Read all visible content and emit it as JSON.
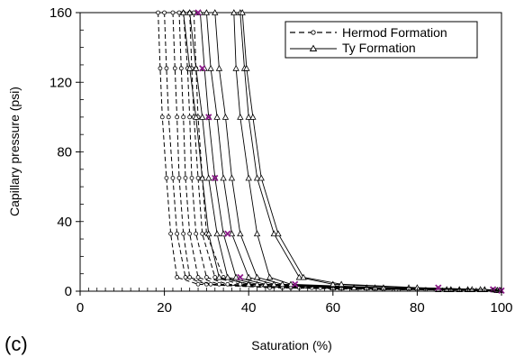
{
  "panel_label": "(c)",
  "chart_data": {
    "type": "line",
    "xlabel": "Saturation (%)",
    "ylabel": "Capillary pressure (psi)",
    "xlim": [
      0,
      100
    ],
    "ylim": [
      0,
      160
    ],
    "xticks": [
      0,
      20,
      40,
      60,
      80,
      100
    ],
    "yticks": [
      0,
      40,
      80,
      120,
      160
    ],
    "legend_position": "top-right",
    "legend": [
      {
        "name": "Hermod Formation",
        "style": "dashed",
        "marker": "circle"
      },
      {
        "name": "Ty Formation",
        "style": "solid",
        "marker": "triangle"
      }
    ],
    "series": [
      {
        "name": "Hermod Formation",
        "points": [
          [
            18.5,
            160
          ],
          [
            19,
            128
          ],
          [
            19.5,
            100
          ],
          [
            20.5,
            65
          ],
          [
            21.5,
            33
          ],
          [
            23,
            8
          ],
          [
            28,
            4
          ],
          [
            45,
            2
          ],
          [
            70,
            1
          ],
          [
            98,
            0.5
          ]
        ]
      },
      {
        "name": "Hermod Formation",
        "points": [
          [
            20,
            160
          ],
          [
            20.5,
            128
          ],
          [
            21,
            100
          ],
          [
            22,
            65
          ],
          [
            23,
            33
          ],
          [
            25,
            8
          ],
          [
            30,
            4
          ],
          [
            48,
            2
          ],
          [
            72,
            1
          ],
          [
            98,
            0.5
          ]
        ]
      },
      {
        "name": "Hermod Formation",
        "points": [
          [
            22,
            160
          ],
          [
            22.5,
            128
          ],
          [
            23,
            100
          ],
          [
            23.5,
            65
          ],
          [
            24.5,
            33
          ],
          [
            26,
            8
          ],
          [
            31,
            4
          ],
          [
            50,
            2
          ],
          [
            75,
            1
          ],
          [
            99,
            0.5
          ]
        ]
      },
      {
        "name": "Hermod Formation",
        "points": [
          [
            23.5,
            160
          ],
          [
            24,
            128
          ],
          [
            24.5,
            100
          ],
          [
            25,
            65
          ],
          [
            26,
            33
          ],
          [
            28,
            8
          ],
          [
            33,
            4
          ],
          [
            52,
            2
          ],
          [
            78,
            1
          ],
          [
            99,
            0.5
          ]
        ]
      },
      {
        "name": "Hermod Formation",
        "points": [
          [
            24.5,
            160
          ],
          [
            25.5,
            128
          ],
          [
            26,
            100
          ],
          [
            26.5,
            65
          ],
          [
            27.5,
            33
          ],
          [
            30,
            8
          ],
          [
            35,
            4
          ],
          [
            55,
            2
          ],
          [
            80,
            1
          ],
          [
            99,
            0.5
          ]
        ]
      },
      {
        "name": "Hermod Formation",
        "points": [
          [
            26,
            160
          ],
          [
            26.5,
            128
          ],
          [
            27,
            100
          ],
          [
            28,
            65
          ],
          [
            29,
            33
          ],
          [
            32,
            8
          ],
          [
            38,
            4
          ],
          [
            57,
            2
          ],
          [
            82,
            1
          ],
          [
            99,
            0.5
          ]
        ]
      },
      {
        "name": "Hermod Formation",
        "points": [
          [
            27,
            160
          ],
          [
            27.5,
            128
          ],
          [
            28,
            100
          ],
          [
            29,
            65
          ],
          [
            30,
            33
          ],
          [
            34,
            8
          ],
          [
            40,
            4
          ],
          [
            60,
            2
          ],
          [
            85,
            1
          ],
          [
            99,
            0.5
          ]
        ]
      },
      {
        "name": "Ty Formation",
        "points": [
          [
            24.5,
            160
          ],
          [
            26,
            128
          ],
          [
            27.5,
            100
          ],
          [
            29,
            65
          ],
          [
            30.5,
            33
          ],
          [
            33,
            8
          ],
          [
            40,
            4
          ],
          [
            60,
            2
          ],
          [
            85,
            1
          ],
          [
            99,
            0.5
          ]
        ]
      },
      {
        "name": "Ty Formation",
        "points": [
          [
            26,
            160
          ],
          [
            27.5,
            128
          ],
          [
            29,
            100
          ],
          [
            30.5,
            65
          ],
          [
            32.5,
            33
          ],
          [
            35,
            8
          ],
          [
            42,
            4
          ],
          [
            62,
            2
          ],
          [
            87,
            1
          ],
          [
            99,
            0.5
          ]
        ]
      },
      {
        "name": "Ty Formation",
        "points": [
          [
            28.5,
            160
          ],
          [
            29.5,
            128
          ],
          [
            30.5,
            100
          ],
          [
            32,
            65
          ],
          [
            34,
            33
          ],
          [
            37,
            8
          ],
          [
            44,
            4
          ],
          [
            65,
            2
          ],
          [
            88,
            1
          ],
          [
            99,
            0.5
          ]
        ]
      },
      {
        "name": "Ty Formation",
        "points": [
          [
            30,
            160
          ],
          [
            31,
            128
          ],
          [
            32.5,
            100
          ],
          [
            34,
            65
          ],
          [
            36,
            33
          ],
          [
            40,
            8
          ],
          [
            46,
            4
          ],
          [
            68,
            2
          ],
          [
            90,
            1
          ],
          [
            99.5,
            0.5
          ]
        ]
      },
      {
        "name": "Ty Formation",
        "points": [
          [
            32,
            160
          ],
          [
            33,
            128
          ],
          [
            34.5,
            100
          ],
          [
            36,
            65
          ],
          [
            38,
            33
          ],
          [
            42,
            8
          ],
          [
            48,
            4
          ],
          [
            70,
            2
          ],
          [
            92,
            1
          ],
          [
            99.5,
            0.5
          ]
        ]
      },
      {
        "name": "Ty Formation",
        "points": [
          [
            36.5,
            160
          ],
          [
            37,
            128
          ],
          [
            38,
            100
          ],
          [
            40,
            65
          ],
          [
            42,
            33
          ],
          [
            45,
            8
          ],
          [
            50,
            4
          ],
          [
            72,
            2
          ],
          [
            93,
            1
          ],
          [
            99.5,
            0.5
          ]
        ]
      },
      {
        "name": "Ty Formation",
        "points": [
          [
            38,
            160
          ],
          [
            39,
            128
          ],
          [
            40,
            100
          ],
          [
            42,
            65
          ],
          [
            46,
            33
          ],
          [
            52,
            8
          ],
          [
            60,
            4
          ],
          [
            78,
            2
          ],
          [
            95,
            1
          ],
          [
            99.5,
            0.5
          ]
        ]
      },
      {
        "name": "Ty Formation",
        "points": [
          [
            38.5,
            160
          ],
          [
            39.5,
            128
          ],
          [
            41,
            100
          ],
          [
            43,
            65
          ],
          [
            47,
            33
          ],
          [
            53,
            8
          ],
          [
            62,
            4
          ],
          [
            80,
            2
          ],
          [
            96,
            1
          ],
          [
            99.8,
            0.5
          ]
        ]
      }
    ],
    "markers_star": {
      "name": "",
      "color": "#8b1a89",
      "points": [
        [
          28,
          160
        ],
        [
          29,
          128
        ],
        [
          30.5,
          100
        ],
        [
          32,
          65
        ],
        [
          35,
          33
        ],
        [
          38,
          8
        ],
        [
          51,
          4
        ],
        [
          85,
          2
        ],
        [
          98,
          1
        ],
        [
          100,
          0.3
        ]
      ]
    }
  }
}
